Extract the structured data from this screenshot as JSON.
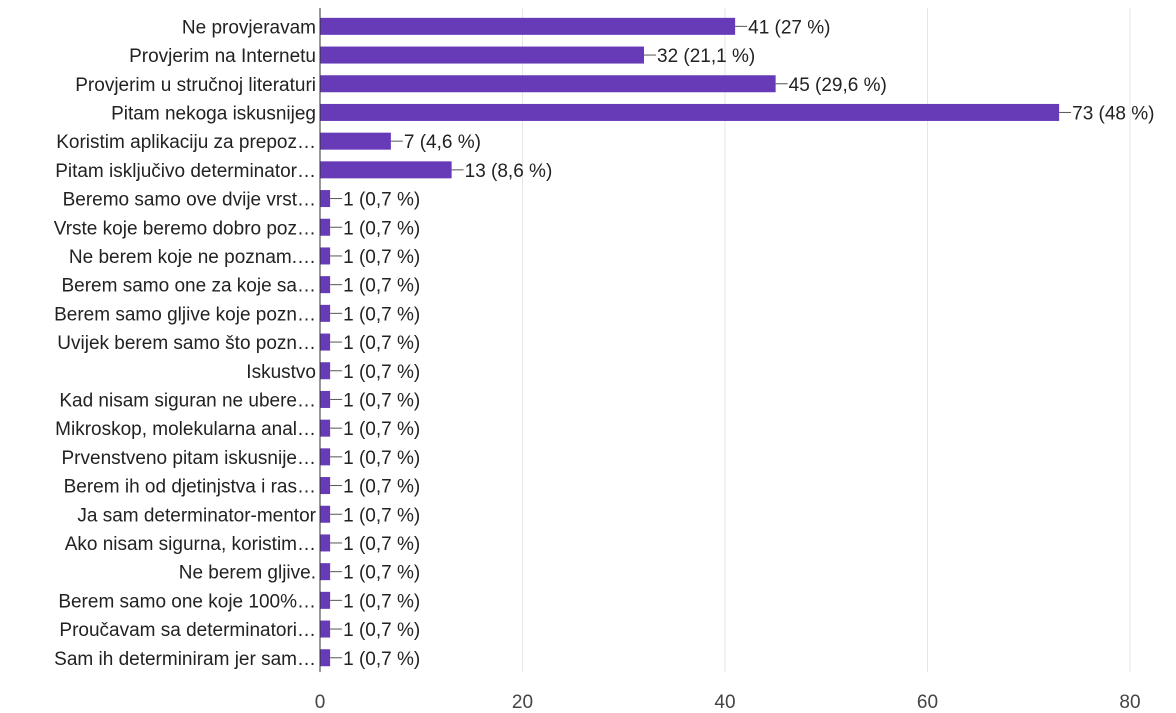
{
  "chart_data": {
    "type": "bar",
    "orientation": "horizontal",
    "title": "",
    "xlabel": "",
    "ylabel": "",
    "xlim": [
      0,
      80
    ],
    "x_ticks": [
      0,
      20,
      40,
      60,
      80
    ],
    "grid": true,
    "legend": "none",
    "bar_color": "#673ab7",
    "categories": [
      "Ne provjeravam",
      "Provjerim na Internetu",
      "Provjerim u stručnoj literaturi",
      "Pitam nekoga iskusnijeg",
      "Koristim aplikaciju za prepoz…",
      "Pitam isključivo determinator…",
      "Beremo samo ove dvije vrst…",
      "Vrste koje beremo dobro poz…",
      "Ne berem koje ne poznam.…",
      "Berem samo one za koje sa…",
      "Berem samo gljive koje pozn…",
      "Uvijek berem samo što pozn…",
      "Iskustvo",
      "Kad nisam siguran ne ubere…",
      "Mikroskop, molekularna anal…",
      "Prvenstveno pitam iskusnije…",
      "Berem ih od djetinjstva i ras…",
      "Ja sam determinator-mentor",
      "Ako nisam sigurna, koristim…",
      "Ne berem gljive.",
      "Berem samo one koje 100%…",
      "Proučavam sa determinatori…",
      "Sam ih determiniram jer sam…"
    ],
    "values": [
      41,
      32,
      45,
      73,
      7,
      13,
      1,
      1,
      1,
      1,
      1,
      1,
      1,
      1,
      1,
      1,
      1,
      1,
      1,
      1,
      1,
      1,
      1
    ],
    "data_labels": [
      "41 (27 %)",
      "32 (21,1 %)",
      "45 (29,6 %)",
      "73 (48 %)",
      "7 (4,6 %)",
      "13 (8,6 %)",
      "1 (0,7 %)",
      "1 (0,7 %)",
      "1 (0,7 %)",
      "1 (0,7 %)",
      "1 (0,7 %)",
      "1 (0,7 %)",
      "1 (0,7 %)",
      "1 (0,7 %)",
      "1 (0,7 %)",
      "1 (0,7 %)",
      "1 (0,7 %)",
      "1 (0,7 %)",
      "1 (0,7 %)",
      "1 (0,7 %)",
      "1 (0,7 %)",
      "1 (0,7 %)",
      "1 (0,7 %)"
    ]
  }
}
